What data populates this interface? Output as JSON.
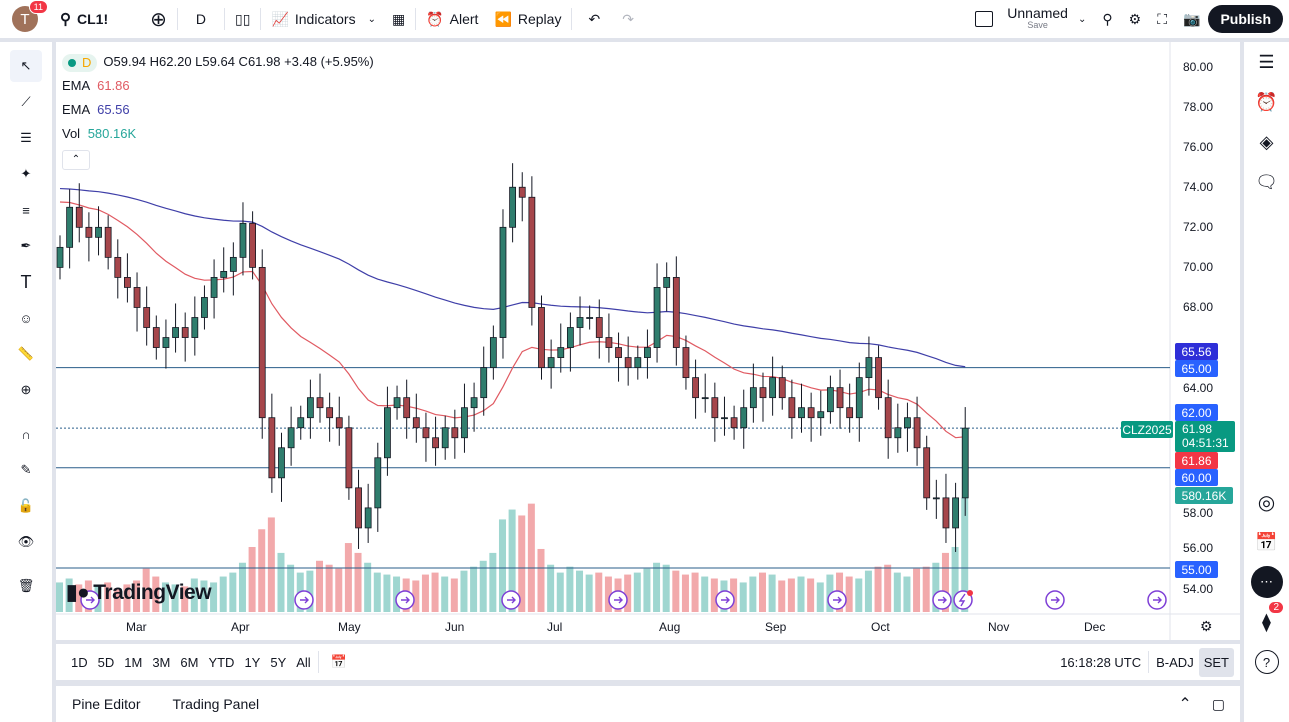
{
  "header": {
    "avatar_letter": "T",
    "notifications": "11",
    "symbol": "CL1!",
    "interval": "D",
    "indicators": "Indicators",
    "alert": "Alert",
    "replay": "Replay",
    "layout_name": "Unnamed",
    "layout_save": "Save",
    "publish": "Publish"
  },
  "legend": {
    "interval": "D",
    "ohlc": "O59.94 H62.20 L59.64 C61.98 +3.48 (+5.95%)",
    "ema1_label": "EMA",
    "ema1_value": "61.86",
    "ema2_label": "EMA",
    "ema2_value": "65.56",
    "vol_label": "Vol",
    "vol_value": "580.16K"
  },
  "price_axis": {
    "labels": [
      "80.00",
      "78.00",
      "76.00",
      "74.00",
      "72.00",
      "70.00",
      "68.00",
      "64.00",
      "58.00",
      "56.00",
      "54.00"
    ],
    "tags": {
      "ema2": "65.56",
      "level65": "65.00",
      "level62": "62.00",
      "symbol": "CLZ2025",
      "last": "61.98",
      "countdown": "04:51:31",
      "ema1": "61.86",
      "level60": "60.00",
      "volume": "580.16K",
      "level55": "55.00"
    }
  },
  "time_axis": {
    "months": [
      "Mar",
      "Apr",
      "May",
      "Jun",
      "Jul",
      "Aug",
      "Sep",
      "Oct",
      "Nov",
      "Dec"
    ]
  },
  "watermark": "TradingView",
  "timeframes": [
    "1D",
    "5D",
    "1M",
    "3M",
    "6M",
    "YTD",
    "1Y",
    "5Y",
    "All"
  ],
  "clock": "16:18:28 UTC",
  "badj": "B-ADJ",
  "set": "SET",
  "bottom": {
    "pine": "Pine Editor",
    "trading": "Trading Panel"
  },
  "right_badge": "2",
  "colors": {
    "up": "#2f7d6d",
    "down": "#a6464b",
    "vol_up": "#9fd6d0",
    "vol_down": "#f2a9ab",
    "ema1": "#e05a62",
    "ema2": "#3f3fa8",
    "level": "#2a5d8a",
    "accent": "#2962ff"
  },
  "chart_data": {
    "type": "candlestick",
    "ylim": [
      53,
      81
    ],
    "hlines": [
      65,
      60,
      55
    ],
    "last_price": 61.98,
    "close": [
      71,
      73,
      72,
      71.5,
      72,
      70.5,
      69.5,
      69,
      68,
      67,
      66,
      66.5,
      67,
      66.5,
      67.5,
      68.5,
      69.5,
      69.8,
      70.5,
      72.2,
      70,
      62.5,
      59.5,
      61,
      62,
      62.5,
      63.5,
      63,
      62.5,
      62,
      59,
      57,
      58,
      60.5,
      63,
      63.5,
      62.5,
      62,
      61.5,
      61,
      62,
      61.5,
      63,
      63.5,
      65,
      66.5,
      72,
      74,
      73.5,
      68,
      65,
      65.5,
      66,
      67,
      67.5,
      67.5,
      66.5,
      66,
      65.5,
      65,
      65.5,
      66,
      69,
      69.5,
      66,
      64.5,
      63.5,
      63.5,
      62.5,
      62.5,
      62,
      63,
      64,
      63.5,
      64.5,
      63.5,
      62.5,
      63,
      62.5,
      62.8,
      64,
      63,
      62.5,
      64.5,
      65.5,
      63.5,
      61.5,
      62,
      62.5,
      61,
      58.5,
      58.5,
      57,
      58.5,
      61.98
    ],
    "volume_k": [
      150,
      170,
      140,
      160,
      130,
      150,
      120,
      140,
      160,
      220,
      180,
      150,
      140,
      130,
      170,
      160,
      150,
      180,
      200,
      250,
      330,
      420,
      480,
      300,
      240,
      200,
      210,
      260,
      240,
      220,
      350,
      300,
      250,
      200,
      190,
      180,
      170,
      160,
      190,
      200,
      180,
      170,
      210,
      230,
      260,
      300,
      470,
      520,
      490,
      550,
      320,
      240,
      200,
      230,
      210,
      190,
      200,
      180,
      170,
      190,
      200,
      220,
      250,
      240,
      210,
      190,
      200,
      180,
      170,
      160,
      170,
      150,
      180,
      200,
      190,
      160,
      170,
      180,
      170,
      150,
      190,
      200,
      180,
      170,
      210,
      230,
      240,
      200,
      180,
      220,
      230,
      250,
      300,
      330,
      580
    ]
  }
}
